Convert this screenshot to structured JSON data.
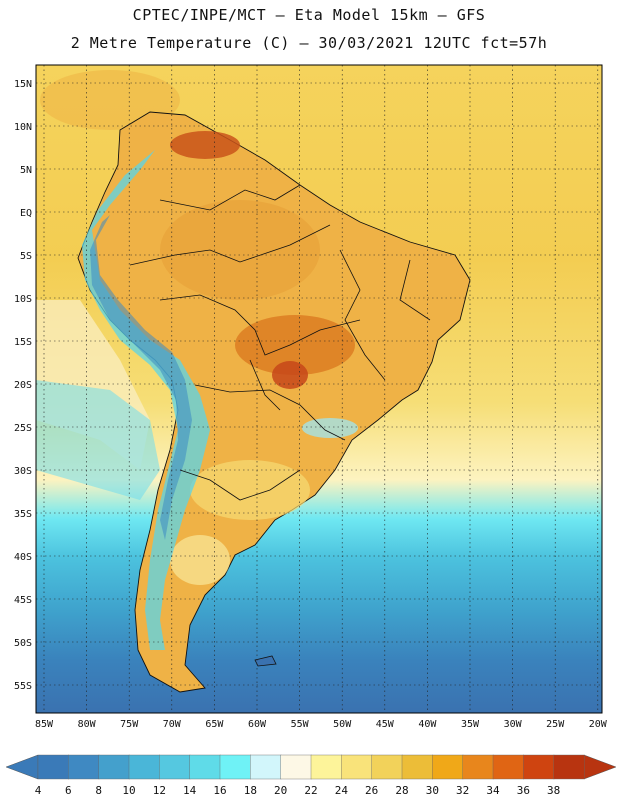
{
  "header": {
    "line1": "CPTEC/INPE/MCT –   Eta Model 15km – GFS",
    "line2": "2 Metre Temperature (C) – 30/03/2021 12UTC fct=57h"
  },
  "map": {
    "lat_labels": [
      "15N",
      "10N",
      "5N",
      "EQ",
      "5S",
      "10S",
      "15S",
      "20S",
      "25S",
      "30S",
      "35S",
      "40S",
      "45S",
      "50S",
      "55S"
    ],
    "lon_labels": [
      "85W",
      "80W",
      "75W",
      "70W",
      "65W",
      "60W",
      "55W",
      "50W",
      "45W",
      "40W",
      "35W",
      "30W",
      "25W",
      "20W"
    ]
  },
  "colorbar": {
    "labels": [
      "4",
      "6",
      "8",
      "10",
      "12",
      "14",
      "16",
      "18",
      "20",
      "22",
      "24",
      "26",
      "28",
      "30",
      "32",
      "34",
      "36",
      "38"
    ],
    "colors": [
      "#3a7ab8",
      "#3f89c2",
      "#44a0cc",
      "#4ab6d8",
      "#55c8e0",
      "#5fdbe8",
      "#6ff2f6",
      "#d2f6fb",
      "#fdf8e6",
      "#fdf49a",
      "#f9e37a",
      "#f2d25a",
      "#ecbd38",
      "#f0a818",
      "#e8861c",
      "#e06514",
      "#cf4410",
      "#b83410"
    ]
  }
}
